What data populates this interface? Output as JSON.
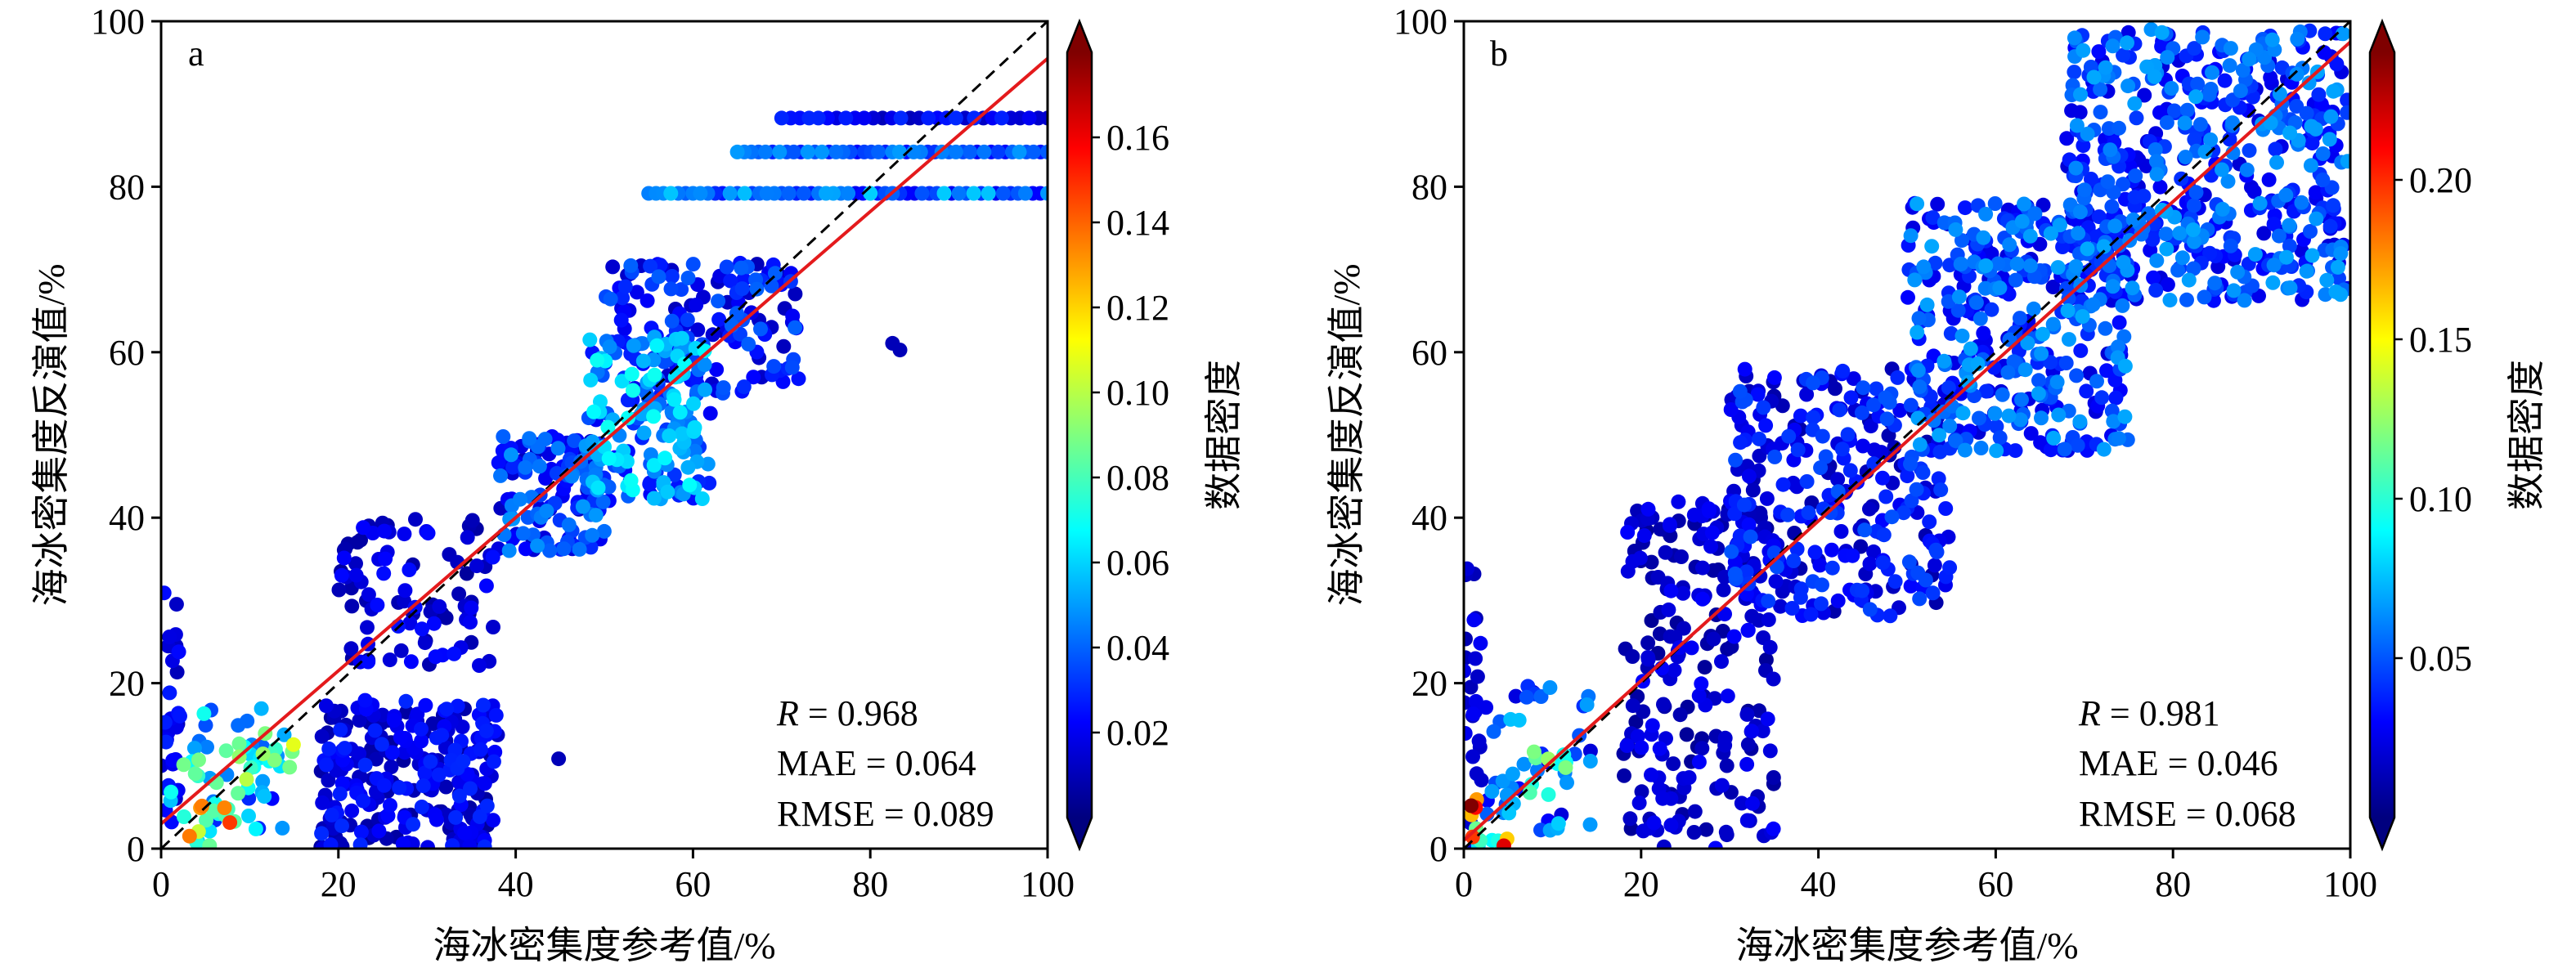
{
  "figure": {
    "colormap": [
      "#00007f",
      "#0000ff",
      "#007fff",
      "#00ffff",
      "#7fff7f",
      "#ffff00",
      "#ff7f00",
      "#ff0000",
      "#7f0000"
    ],
    "fit_color": "#e41a1c",
    "identity_color": "#000000"
  },
  "chart_data": [
    {
      "type": "scatter",
      "panel_label": "a",
      "xlabel": "海冰密集度参考值/%",
      "ylabel": "海冰密集度反演值/%",
      "xlim": [
        0,
        100
      ],
      "ylim": [
        0,
        100
      ],
      "x_ticks": [
        0,
        20,
        40,
        60,
        80,
        100
      ],
      "y_ticks": [
        0,
        20,
        40,
        60,
        80,
        100
      ],
      "colorbar": {
        "label": "数据密度",
        "range": [
          0.0,
          0.18
        ],
        "ticks": [
          "0.02",
          "0.04",
          "0.06",
          "0.08",
          "0.10",
          "0.12",
          "0.14",
          "0.16"
        ],
        "tick_values": [
          0.02,
          0.04,
          0.06,
          0.08,
          0.1,
          0.12,
          0.14,
          0.16
        ]
      },
      "stats": {
        "r_symbol": "R",
        "r_text": " = 0.968",
        "mae_text": "MAE = 0.064",
        "rmse_text": "RMSE = 0.089"
      },
      "fit_line": {
        "x": [
          0,
          100
        ],
        "y": [
          3.0,
          95.5
        ]
      },
      "identity_line": {
        "x": [
          0,
          100
        ],
        "y": [
          0,
          100
        ]
      },
      "clusters": [
        {
          "x": [
            0,
            2
          ],
          "y": [
            0,
            35
          ],
          "n": 30,
          "density": [
            0.01,
            0.03
          ]
        },
        {
          "x": [
            1,
            14
          ],
          "y": [
            2,
            17
          ],
          "n": 50,
          "density": [
            0.02,
            0.09
          ]
        },
        {
          "x": [
            3,
            8
          ],
          "y": [
            0,
            6
          ],
          "n": 12,
          "density": [
            0.05,
            0.16
          ]
        },
        {
          "x": [
            8,
            15
          ],
          "y": [
            7,
            14
          ],
          "n": 12,
          "density": [
            0.06,
            0.12
          ]
        },
        {
          "x": [
            18,
            38
          ],
          "y": [
            0,
            18
          ],
          "n": 260,
          "density": [
            0.005,
            0.03
          ]
        },
        {
          "x": [
            20,
            38
          ],
          "y": [
            22,
            40
          ],
          "n": 90,
          "density": [
            0.005,
            0.025
          ]
        },
        {
          "x": [
            38,
            50
          ],
          "y": [
            36,
            50
          ],
          "n": 130,
          "density": [
            0.01,
            0.05
          ]
        },
        {
          "x": [
            48,
            62
          ],
          "y": [
            42,
            62
          ],
          "n": 180,
          "density": [
            0.02,
            0.07
          ]
        },
        {
          "x": [
            50,
            72
          ],
          "y": [
            55,
            71
          ],
          "n": 140,
          "density": [
            0.01,
            0.04
          ]
        },
        {
          "x": [
            42,
            45
          ],
          "y": [
            10,
            11
          ],
          "n": 1,
          "density": [
            0.01,
            0.01
          ]
        },
        {
          "x": [
            82,
            84
          ],
          "y": [
            60,
            62
          ],
          "n": 2,
          "density": [
            0.01,
            0.01
          ]
        }
      ],
      "bands": [
        {
          "x": [
            70,
            100
          ],
          "y": 88.3,
          "n": 30,
          "density": [
            0.01,
            0.03
          ]
        },
        {
          "x": [
            65,
            100
          ],
          "y": 84.2,
          "n": 45,
          "density": [
            0.02,
            0.05
          ]
        },
        {
          "x": [
            55,
            100
          ],
          "y": 79.2,
          "n": 55,
          "density": [
            0.02,
            0.06
          ]
        }
      ]
    },
    {
      "type": "scatter",
      "panel_label": "b",
      "xlabel": "海冰密集度参考值/%",
      "ylabel": "海冰密集度反演值/%",
      "xlim": [
        0,
        100
      ],
      "ylim": [
        0,
        100
      ],
      "x_ticks": [
        0,
        20,
        40,
        60,
        80,
        100
      ],
      "y_ticks": [
        0,
        20,
        40,
        60,
        80,
        100
      ],
      "colorbar": {
        "label": "数据密度",
        "range": [
          0.0,
          0.24
        ],
        "ticks": [
          "0.05",
          "0.10",
          "0.15",
          "0.20"
        ],
        "tick_values": [
          0.05,
          0.1,
          0.15,
          0.2
        ]
      },
      "stats": {
        "r_symbol": "R",
        "r_text": " = 0.981",
        "mae_text": "MAE = 0.046",
        "rmse_text": "RMSE = 0.068"
      },
      "fit_line": {
        "x": [
          0,
          100
        ],
        "y": [
          1.0,
          97.5
        ]
      },
      "identity_line": {
        "x": [
          0,
          100
        ],
        "y": [
          0,
          100
        ]
      },
      "clusters": [
        {
          "x": [
            0,
            2
          ],
          "y": [
            0,
            34
          ],
          "n": 25,
          "density": [
            0.01,
            0.03
          ]
        },
        {
          "x": [
            2,
            15
          ],
          "y": [
            2,
            20
          ],
          "n": 45,
          "density": [
            0.02,
            0.08
          ]
        },
        {
          "x": [
            0,
            5
          ],
          "y": [
            0,
            6
          ],
          "n": 12,
          "density": [
            0.08,
            0.24
          ]
        },
        {
          "x": [
            7,
            12
          ],
          "y": [
            6,
            12
          ],
          "n": 10,
          "density": [
            0.08,
            0.13
          ]
        },
        {
          "x": [
            18,
            35
          ],
          "y": [
            0,
            42
          ],
          "n": 220,
          "density": [
            0.005,
            0.03
          ]
        },
        {
          "x": [
            30,
            55
          ],
          "y": [
            28,
            58
          ],
          "n": 300,
          "density": [
            0.01,
            0.05
          ]
        },
        {
          "x": [
            50,
            75
          ],
          "y": [
            48,
            78
          ],
          "n": 380,
          "density": [
            0.02,
            0.07
          ]
        },
        {
          "x": [
            68,
            100
          ],
          "y": [
            66,
            99
          ],
          "n": 520,
          "density": [
            0.02,
            0.07
          ]
        }
      ],
      "bands": []
    }
  ]
}
